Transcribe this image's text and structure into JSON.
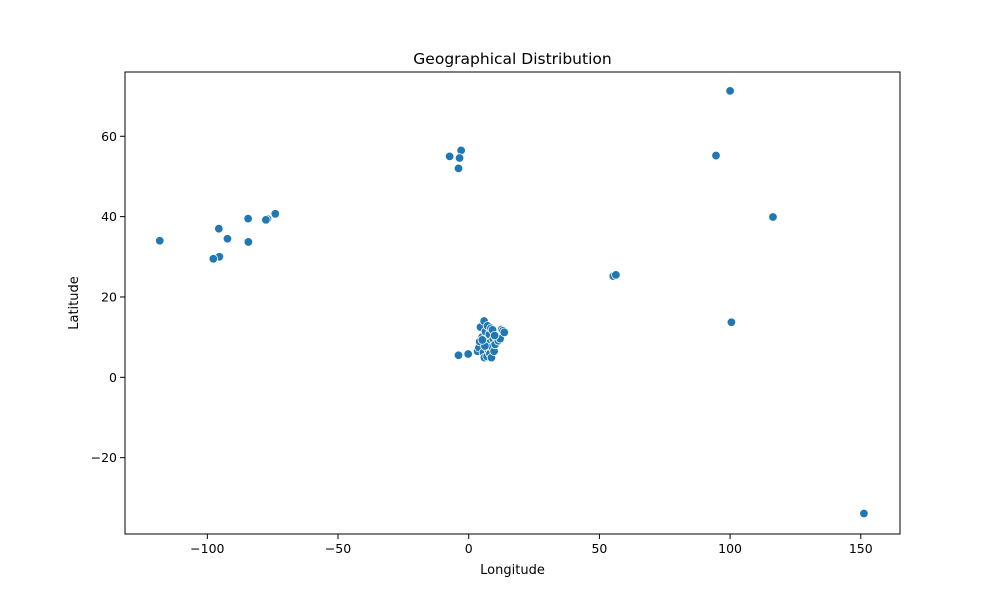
{
  "chart_data": {
    "type": "scatter",
    "title": "Geographical Distribution",
    "xlabel": "Longitude",
    "ylabel": "Latitude",
    "xlim": [
      -131.5,
      165
    ],
    "ylim": [
      -39,
      76
    ],
    "x_ticks": [
      -100,
      -50,
      0,
      50,
      100,
      150
    ],
    "y_ticks": [
      -20,
      0,
      20,
      40,
      60
    ],
    "grid": false,
    "legend": "none",
    "marker_color": "#1f77b4",
    "marker_edge_color": "#ffffff",
    "points": [
      {
        "x": 100.0,
        "y": 71.3
      },
      {
        "x": 94.6,
        "y": 55.2
      },
      {
        "x": 116.4,
        "y": 39.9
      },
      {
        "x": 100.5,
        "y": 13.7
      },
      {
        "x": 151.2,
        "y": -33.9
      },
      {
        "x": 55.3,
        "y": 25.2
      },
      {
        "x": 56.3,
        "y": 25.5
      },
      {
        "x": -2.9,
        "y": 56.5
      },
      {
        "x": -7.3,
        "y": 55.0
      },
      {
        "x": -3.5,
        "y": 54.6
      },
      {
        "x": -3.9,
        "y": 52.0
      },
      {
        "x": -118.2,
        "y": 34.0
      },
      {
        "x": -74.0,
        "y": 40.7
      },
      {
        "x": -77.0,
        "y": 39.4
      },
      {
        "x": -77.6,
        "y": 39.2
      },
      {
        "x": -84.4,
        "y": 39.5
      },
      {
        "x": -95.6,
        "y": 37.0
      },
      {
        "x": -92.3,
        "y": 34.5
      },
      {
        "x": -84.3,
        "y": 33.7
      },
      {
        "x": -95.4,
        "y": 30.0
      },
      {
        "x": -97.7,
        "y": 29.5
      },
      {
        "x": -3.9,
        "y": 5.5
      },
      {
        "x": -0.2,
        "y": 5.8
      },
      {
        "x": 3.4,
        "y": 6.5
      },
      {
        "x": 3.9,
        "y": 7.4
      },
      {
        "x": 4.2,
        "y": 8.9
      },
      {
        "x": 4.5,
        "y": 12.5
      },
      {
        "x": 5.1,
        "y": 10.0
      },
      {
        "x": 5.6,
        "y": 6.2
      },
      {
        "x": 5.9,
        "y": 14.0
      },
      {
        "x": 6.0,
        "y": 4.9
      },
      {
        "x": 6.4,
        "y": 11.4
      },
      {
        "x": 6.8,
        "y": 8.2
      },
      {
        "x": 7.0,
        "y": 5.2
      },
      {
        "x": 7.2,
        "y": 12.8
      },
      {
        "x": 7.4,
        "y": 9.6
      },
      {
        "x": 7.5,
        "y": 6.8
      },
      {
        "x": 7.9,
        "y": 10.7
      },
      {
        "x": 8.1,
        "y": 5.9
      },
      {
        "x": 8.3,
        "y": 8.7
      },
      {
        "x": 8.5,
        "y": 12.2
      },
      {
        "x": 8.7,
        "y": 4.9
      },
      {
        "x": 8.9,
        "y": 7.5
      },
      {
        "x": 9.1,
        "y": 11.8
      },
      {
        "x": 9.4,
        "y": 9.5
      },
      {
        "x": 9.7,
        "y": 6.5
      },
      {
        "x": 10.1,
        "y": 8.2
      },
      {
        "x": 10.6,
        "y": 9.9
      },
      {
        "x": 11.3,
        "y": 9.1
      },
      {
        "x": 12.0,
        "y": 9.6
      },
      {
        "x": 12.6,
        "y": 11.9
      },
      {
        "x": 13.1,
        "y": 11.6
      },
      {
        "x": 13.6,
        "y": 11.2
      },
      {
        "x": 6.2,
        "y": 7.8
      },
      {
        "x": 5.2,
        "y": 9.3
      },
      {
        "x": 9.9,
        "y": 10.4
      }
    ]
  }
}
